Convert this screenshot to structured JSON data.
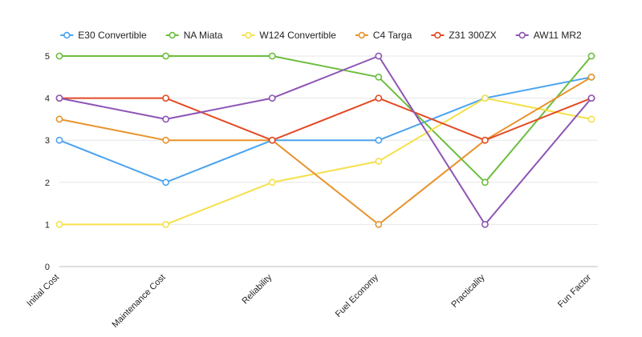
{
  "chart_data": {
    "type": "line",
    "categories": [
      "Initial Cost",
      "Maintenance Cost",
      "Reliability",
      "Fuel Economy",
      "Practicality",
      "Fun Factor"
    ],
    "ylim": [
      0,
      5
    ],
    "yticks": [
      0,
      1,
      2,
      3,
      4,
      5
    ],
    "grid": true,
    "legend_position": "top",
    "series": [
      {
        "name": "E30 Convertible",
        "color": "#4aa3f0",
        "values": [
          3,
          2,
          3,
          3,
          4,
          4.5
        ]
      },
      {
        "name": "NA Miata",
        "color": "#6cbe3f",
        "values": [
          5,
          5,
          5,
          4.5,
          2,
          5
        ]
      },
      {
        "name": "W124 Convertible",
        "color": "#f5e04a",
        "values": [
          1,
          1,
          2,
          2.5,
          4,
          3.5
        ]
      },
      {
        "name": "C4 Targa",
        "color": "#e8922b",
        "values": [
          3.5,
          3,
          3,
          1,
          3,
          4.5
        ]
      },
      {
        "name": "Z31 300ZX",
        "color": "#e34a24",
        "values": [
          4,
          4,
          3,
          4,
          3,
          4
        ]
      },
      {
        "name": "AW11 MR2",
        "color": "#8e55b5",
        "values": [
          4,
          3.5,
          4,
          5,
          1,
          4
        ]
      }
    ]
  }
}
